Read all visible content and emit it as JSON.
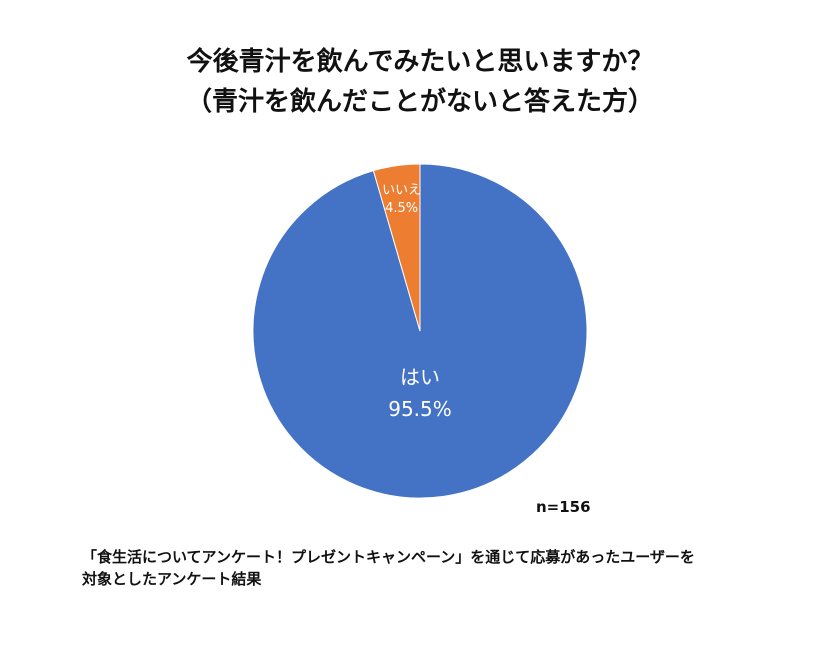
{
  "chart_data": {
    "type": "pie",
    "title_lines": [
      "今後青汁を飲んでみたいと思いますか？",
      "（青汁を飲んだことがないと答えた方）"
    ],
    "slices": [
      {
        "label": "はい",
        "value": 95.5,
        "value_label": "95.5%",
        "color": "#4472C4"
      },
      {
        "label": "いいえ",
        "value": 4.5,
        "value_label": "4.5%",
        "color": "#ED7D31"
      }
    ],
    "sample_size": "n=156",
    "legend": "none"
  },
  "footnote_lines": [
    "「食生活についてアンケート！プレゼントキャンペーン」を通じて応募があったユーザーを",
    "対象としたアンケート結果"
  ]
}
